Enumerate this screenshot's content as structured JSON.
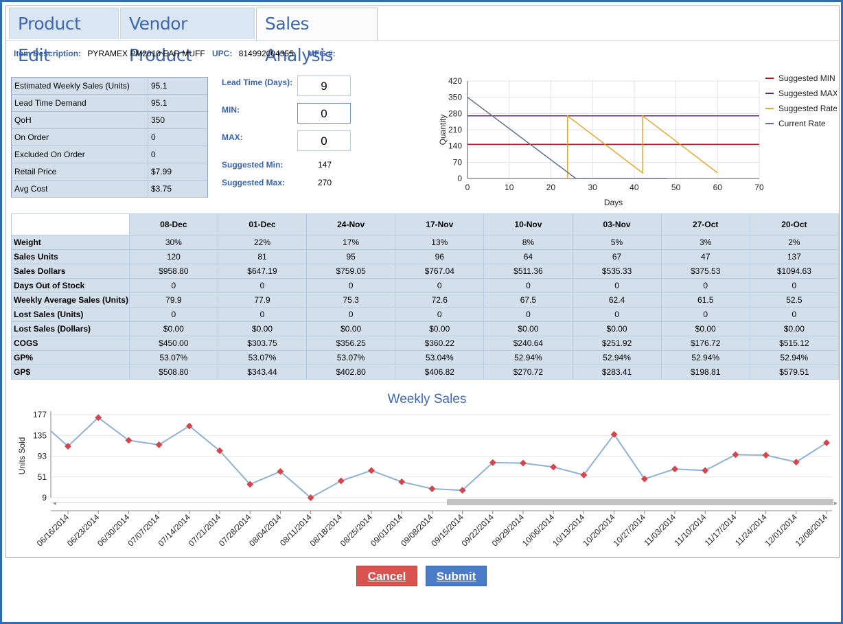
{
  "tabs": [
    {
      "label": "Product Edit"
    },
    {
      "label": "Vendor Product"
    },
    {
      "label": "Sales Analysis"
    }
  ],
  "item": {
    "description_label": "Item Description:",
    "description": "PYRAMEX PM2010 EAR MUFF",
    "upc_label": "UPC:",
    "upc": "814992004355",
    "mfg_label": "MFG #:",
    "mfg": ""
  },
  "stats": [
    {
      "label": "Estimated Weekly Sales (Units)",
      "value": "95.1"
    },
    {
      "label": "Lead Time Demand",
      "value": "95.1"
    },
    {
      "label": "QoH",
      "value": "350"
    },
    {
      "label": "On Order",
      "value": "0"
    },
    {
      "label": "Excluded On Order",
      "value": "0"
    },
    {
      "label": "Retail Price",
      "value": "$7.99"
    },
    {
      "label": "Avg Cost",
      "value": "$3.75"
    }
  ],
  "fields": {
    "lead_time_label": "Lead Time (Days):",
    "lead_time": "9",
    "min_label": "MIN:",
    "min": "0",
    "max_label": "MAX:",
    "max": "0",
    "suggested_min_label": "Suggested Min:",
    "suggested_min": "147",
    "suggested_max_label": "Suggested Max:",
    "suggested_max": "270"
  },
  "grid": {
    "columns": [
      "08-Dec",
      "01-Dec",
      "24-Nov",
      "17-Nov",
      "10-Nov",
      "03-Nov",
      "27-Oct",
      "20-Oct"
    ],
    "rows": [
      {
        "label": "Weight",
        "values": [
          "30%",
          "22%",
          "17%",
          "13%",
          "8%",
          "5%",
          "3%",
          "2%"
        ]
      },
      {
        "label": "Sales Units",
        "values": [
          "120",
          "81",
          "95",
          "96",
          "64",
          "67",
          "47",
          "137"
        ]
      },
      {
        "label": "Sales Dollars",
        "values": [
          "$958.80",
          "$647.19",
          "$759.05",
          "$767.04",
          "$511.36",
          "$535.33",
          "$375.53",
          "$1094.63"
        ]
      },
      {
        "label": "Days Out of Stock",
        "values": [
          "0",
          "0",
          "0",
          "0",
          "0",
          "0",
          "0",
          "0"
        ]
      },
      {
        "label": "Weekly Average Sales (Units)",
        "values": [
          "79.9",
          "77.9",
          "75.3",
          "72.6",
          "67.5",
          "62.4",
          "61.5",
          "52.5"
        ]
      },
      {
        "label": "Lost Sales (Units)",
        "values": [
          "0",
          "0",
          "0",
          "0",
          "0",
          "0",
          "0",
          "0"
        ]
      },
      {
        "label": "Lost Sales (Dollars)",
        "values": [
          "$0.00",
          "$0.00",
          "$0.00",
          "$0.00",
          "$0.00",
          "$0.00",
          "$0.00",
          "$0.00"
        ]
      },
      {
        "label": "COGS",
        "values": [
          "$450.00",
          "$303.75",
          "$356.25",
          "$360.22",
          "$240.64",
          "$251.92",
          "$176.72",
          "$515.12"
        ]
      },
      {
        "label": "GP%",
        "values": [
          "53.07%",
          "53.07%",
          "53.07%",
          "53.04%",
          "52.94%",
          "52.94%",
          "52.94%",
          "52.94%"
        ]
      },
      {
        "label": "GP$",
        "values": [
          "$508.80",
          "$343.44",
          "$402.80",
          "$406.82",
          "$270.72",
          "$283.41",
          "$198.81",
          "$579.51"
        ]
      }
    ]
  },
  "buttons": {
    "cancel": "Cancel",
    "submit": "Submit"
  },
  "colors": {
    "accent": "#3f67b0",
    "cancel": "#d9534f",
    "submit": "#4a7cc8"
  },
  "chart_data": [
    {
      "type": "line",
      "title": "",
      "xlabel": "Days",
      "ylabel": "Quantity",
      "xlim": [
        0,
        70
      ],
      "ylim": [
        0,
        420
      ],
      "xticks": [
        0,
        10,
        20,
        30,
        40,
        50,
        60,
        70
      ],
      "yticks": [
        0,
        70,
        140,
        210,
        280,
        350,
        420
      ],
      "grid": true,
      "legend_position": "right",
      "series": [
        {
          "name": "Suggested MIN",
          "color": "#c0181f",
          "x": [
            0,
            70
          ],
          "y": [
            147,
            147
          ]
        },
        {
          "name": "Suggested MAX",
          "color": "#5a2d6e",
          "x": [
            0,
            70
          ],
          "y": [
            270,
            270
          ]
        },
        {
          "name": "Suggested Rate",
          "color": "#e8a92c",
          "x": [
            24,
            24,
            42,
            42,
            60
          ],
          "y": [
            0,
            270,
            24,
            270,
            24
          ]
        },
        {
          "name": "Current Rate",
          "color": "#5f6f8c",
          "x": [
            0,
            26,
            48
          ],
          "y": [
            350,
            0,
            0
          ]
        }
      ]
    },
    {
      "type": "line",
      "title": "Weekly Sales",
      "xlabel": "",
      "ylabel": "Units Sold",
      "ylim": [
        9,
        177
      ],
      "yticks": [
        9,
        51,
        93,
        135,
        177
      ],
      "grid": true,
      "categories": [
        "06/16/2014",
        "06/23/2014",
        "06/30/2014",
        "07/07/2014",
        "07/14/2014",
        "07/21/2014",
        "07/28/2014",
        "08/04/2014",
        "08/11/2014",
        "08/18/2014",
        "08/25/2014",
        "09/01/2014",
        "09/08/2014",
        "09/15/2014",
        "09/22/2014",
        "09/29/2014",
        "10/06/2014",
        "10/13/2014",
        "10/20/2014",
        "10/27/2014",
        "11/03/2014",
        "11/10/2014",
        "11/17/2014",
        "11/24/2014",
        "12/01/2014",
        "12/08/2014"
      ],
      "series": [
        {
          "name": "",
          "color": "#8fb1d6",
          "marker_color": "#d6454b",
          "values": [
            113,
            171,
            125,
            116,
            154,
            104,
            36,
            62,
            9,
            43,
            64,
            41,
            27,
            24,
            80,
            79,
            71,
            55,
            137,
            47,
            67,
            64,
            96,
            95,
            81,
            120
          ]
        }
      ]
    }
  ]
}
